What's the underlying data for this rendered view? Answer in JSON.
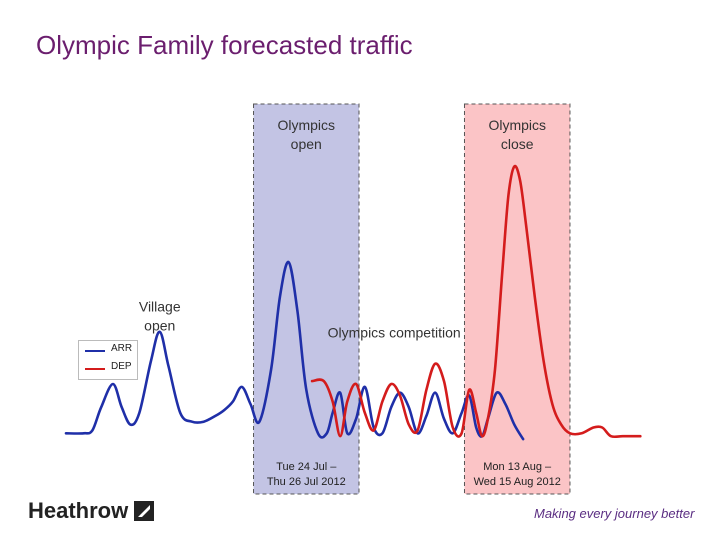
{
  "title": "Olympic Family forecasted traffic",
  "footer": {
    "brand": "Heathrow",
    "tagline": "Making every journey better"
  },
  "chart_data": {
    "type": "line",
    "title": "Olympic Family forecasted traffic",
    "xlabel": "",
    "ylabel": "",
    "grid": false,
    "legend_position": "left",
    "x_range": [
      0,
      100
    ],
    "ylim": [
      0,
      100
    ],
    "shaded_periods": [
      {
        "name": "games-open",
        "start": 32,
        "end": 50,
        "color": "#c3c4e4",
        "border": "#555555",
        "label": "Olympics open",
        "date_label": "Tue 24 Jul – Thu 26 Jul 2012"
      },
      {
        "name": "games-close",
        "start": 68,
        "end": 86,
        "color": "#fbc4c6",
        "border": "#555555",
        "label": "Olympics close",
        "date_label": "Mon 13 Aug – Wed 15 Aug 2012"
      }
    ],
    "annotations": [
      {
        "name": "village-open",
        "text": "Village open",
        "x": 16,
        "y": 45
      },
      {
        "name": "olympics-competition",
        "text": "Olympics competition",
        "x": 56,
        "y": 36
      }
    ],
    "series": [
      {
        "name": "ARR",
        "color": "#1f2fa8",
        "points": [
          [
            0,
            3
          ],
          [
            3,
            3
          ],
          [
            4.5,
            4
          ],
          [
            6,
            12
          ],
          [
            8,
            20
          ],
          [
            9.5,
            12
          ],
          [
            11,
            6
          ],
          [
            12.5,
            10
          ],
          [
            14.5,
            28
          ],
          [
            16,
            38
          ],
          [
            17.5,
            26
          ],
          [
            19.5,
            10
          ],
          [
            21.5,
            7
          ],
          [
            23.5,
            7
          ],
          [
            25.5,
            9
          ],
          [
            27,
            11
          ],
          [
            28.5,
            14
          ],
          [
            30,
            19
          ],
          [
            31.5,
            13
          ],
          [
            33,
            7
          ],
          [
            35,
            25
          ],
          [
            36.5,
            50
          ],
          [
            38,
            62
          ],
          [
            39.5,
            45
          ],
          [
            41,
            18
          ],
          [
            43,
            3
          ],
          [
            44.5,
            3
          ],
          [
            45.5,
            10
          ],
          [
            46.8,
            17
          ],
          [
            48,
            3
          ],
          [
            49.5,
            8
          ],
          [
            51,
            19
          ],
          [
            52.5,
            5
          ],
          [
            54,
            3
          ],
          [
            55.5,
            12
          ],
          [
            57,
            17
          ],
          [
            58.5,
            12
          ],
          [
            60,
            3
          ],
          [
            61.5,
            9
          ],
          [
            63,
            17
          ],
          [
            64.5,
            8
          ],
          [
            66,
            3
          ],
          [
            67.5,
            10
          ],
          [
            68.8,
            16
          ],
          [
            70,
            5
          ],
          [
            71,
            2
          ],
          [
            72,
            8
          ],
          [
            73.5,
            17
          ],
          [
            75,
            13
          ],
          [
            76.5,
            6
          ],
          [
            78,
            1
          ]
        ]
      },
      {
        "name": "DEP",
        "color": "#d41c1c",
        "points": [
          [
            42,
            21
          ],
          [
            44,
            21
          ],
          [
            45.5,
            14
          ],
          [
            46.8,
            2
          ],
          [
            48,
            14
          ],
          [
            49.5,
            20
          ],
          [
            51,
            10
          ],
          [
            52.5,
            4
          ],
          [
            54,
            14
          ],
          [
            55.5,
            20
          ],
          [
            57,
            16
          ],
          [
            58.5,
            6
          ],
          [
            60,
            4
          ],
          [
            61.5,
            18
          ],
          [
            63,
            27
          ],
          [
            64.5,
            21
          ],
          [
            66,
            5
          ],
          [
            67.5,
            3
          ],
          [
            68.8,
            18
          ],
          [
            70,
            10
          ],
          [
            71,
            2
          ],
          [
            72,
            8
          ],
          [
            73.2,
            25
          ],
          [
            74.5,
            60
          ],
          [
            75.5,
            85
          ],
          [
            76.5,
            95
          ],
          [
            77.5,
            90
          ],
          [
            78.5,
            75
          ],
          [
            80,
            50
          ],
          [
            81.5,
            28
          ],
          [
            83,
            13
          ],
          [
            84.5,
            6
          ],
          [
            86,
            3
          ],
          [
            88,
            3
          ],
          [
            90,
            5
          ],
          [
            91.5,
            5
          ],
          [
            93,
            2
          ],
          [
            95,
            2
          ],
          [
            98,
            2
          ]
        ]
      }
    ]
  }
}
